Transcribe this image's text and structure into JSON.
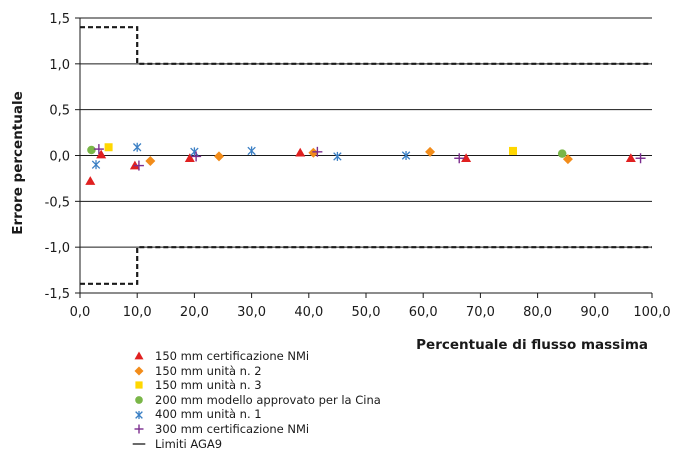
{
  "chart_data": {
    "type": "scatter",
    "title": "",
    "xlabel": "Percentuale di flusso massima",
    "ylabel": "Errore percentuale",
    "xlim": [
      0,
      100
    ],
    "ylim": [
      -1.5,
      1.5
    ],
    "x_ticks": [
      0,
      10,
      20,
      30,
      40,
      50,
      60,
      70,
      80,
      90,
      100
    ],
    "x_tick_labels": [
      "0,0",
      "10,0",
      "20,0",
      "30,0",
      "40,0",
      "50,0",
      "60,0",
      "70,0",
      "80,0",
      "90,0",
      "100,0"
    ],
    "y_ticks": [
      1.5,
      1.0,
      0.5,
      0.0,
      -0.5,
      -1.0,
      -1.5
    ],
    "y_tick_labels": [
      "1,5",
      "1,0",
      "0,5",
      "0,0",
      "-0,5",
      "-1,0",
      "-1,5"
    ],
    "grid": "horizontal",
    "legend_position": "bottom-left",
    "series": [
      {
        "name": "150 mm certificazione NMi",
        "marker": "triangle",
        "color": "#e02020",
        "x": [
          1.8,
          3.7,
          9.6,
          19.2,
          38.5,
          67.5,
          96.3
        ],
        "y": [
          -0.28,
          0.01,
          -0.11,
          -0.03,
          0.03,
          -0.03,
          -0.03
        ]
      },
      {
        "name": "150 mm unità n. 2",
        "marker": "diamond",
        "color": "#f28c1a",
        "x": [
          12.3,
          24.3,
          40.8,
          61.2,
          85.3
        ],
        "y": [
          -0.06,
          -0.01,
          0.03,
          0.04,
          -0.04
        ]
      },
      {
        "name": "150 mm unità n. 3",
        "marker": "square",
        "color": "#ffd700",
        "x": [
          5.0,
          75.7
        ],
        "y": [
          0.09,
          0.05
        ]
      },
      {
        "name": "200 mm modello approvato per la Cina",
        "marker": "circle",
        "color": "#7ab648",
        "x": [
          2.0,
          84.3
        ],
        "y": [
          0.06,
          0.02
        ]
      },
      {
        "name": "400 mm unità n. 1",
        "marker": "asterisk",
        "color": "#3a7fc4",
        "x": [
          2.8,
          10.0,
          20.0,
          30.0,
          45.0,
          57.0
        ],
        "y": [
          -0.1,
          0.09,
          0.04,
          0.05,
          -0.01,
          0.0
        ]
      },
      {
        "name": "300 mm certificazione NMi",
        "marker": "plus",
        "color": "#7b2d8e",
        "x": [
          3.3,
          10.3,
          20.3,
          41.5,
          66.3,
          98.0
        ],
        "y": [
          0.07,
          -0.11,
          -0.01,
          0.04,
          -0.03,
          -0.03
        ]
      },
      {
        "name": "Limiti AGA9",
        "marker": "line",
        "color": "#1a1a1a",
        "upper_x": [
          0,
          10,
          10,
          100
        ],
        "upper_y": [
          1.4,
          1.4,
          1.0,
          1.0
        ],
        "lower_x": [
          0,
          10,
          10,
          100
        ],
        "lower_y": [
          -1.4,
          -1.4,
          -1.0,
          -1.0
        ]
      }
    ]
  }
}
